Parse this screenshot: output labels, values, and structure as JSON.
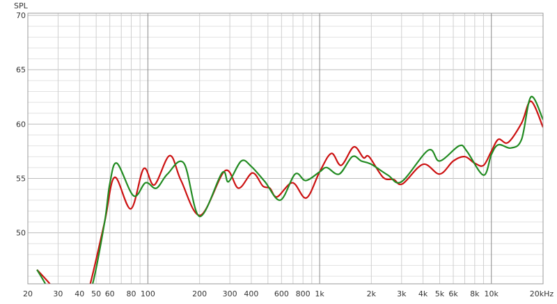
{
  "chart_data": {
    "type": "line",
    "ylabel": "SPL",
    "x_scale": "log",
    "xlim": [
      20,
      20000
    ],
    "ylim": [
      45.3,
      70.2
    ],
    "grid": true,
    "x_ticks": [
      {
        "v": 20,
        "label": "20"
      },
      {
        "v": 30,
        "label": "30"
      },
      {
        "v": 40,
        "label": "40"
      },
      {
        "v": 50,
        "label": "50"
      },
      {
        "v": 60,
        "label": "60"
      },
      {
        "v": 80,
        "label": "80"
      },
      {
        "v": 100,
        "label": "100"
      },
      {
        "v": 200,
        "label": "200"
      },
      {
        "v": 300,
        "label": "300"
      },
      {
        "v": 400,
        "label": "400"
      },
      {
        "v": 600,
        "label": "600"
      },
      {
        "v": 800,
        "label": "800"
      },
      {
        "v": 1000,
        "label": "1k"
      },
      {
        "v": 2000,
        "label": "2k"
      },
      {
        "v": 3000,
        "label": "3k"
      },
      {
        "v": 4000,
        "label": "4k"
      },
      {
        "v": 5000,
        "label": "5k"
      },
      {
        "v": 6000,
        "label": "6k"
      },
      {
        "v": 8000,
        "label": "8k"
      },
      {
        "v": 10000,
        "label": "10k"
      },
      {
        "v": 20000,
        "label": "20kHz"
      }
    ],
    "y_ticks": [
      {
        "v": 70,
        "label": "70"
      },
      {
        "v": 65,
        "label": "65"
      },
      {
        "v": 60,
        "label": "60"
      },
      {
        "v": 55,
        "label": "55"
      },
      {
        "v": 50,
        "label": "50"
      }
    ],
    "series": [
      {
        "color": "#cc1111",
        "x": [
          22.6,
          27.2,
          33,
          40,
          46,
          56,
          64,
          79.5,
          94.5,
          109,
          134,
          156,
          202,
          281,
          337,
          406,
          467,
          513,
          565,
          695,
          836,
          1000,
          1170,
          1335,
          1580,
          1800,
          1940,
          2340,
          2700,
          3040,
          4000,
          5000,
          6000,
          7000,
          8000,
          9000,
          10000,
          11000,
          12500,
          15000,
          17000,
          20000
        ],
        "y": [
          46.6,
          45.2,
          43.5,
          42.5,
          45.2,
          51.0,
          55.1,
          52.2,
          55.9,
          54.4,
          57.1,
          54.8,
          51.6,
          55.7,
          54.1,
          55.5,
          54.3,
          54.1,
          53.3,
          54.6,
          53.2,
          55.6,
          57.3,
          56.2,
          57.9,
          56.9,
          57.0,
          55.1,
          54.9,
          54.5,
          56.3,
          55.4,
          56.6,
          57.0,
          56.4,
          56.2,
          57.5,
          58.6,
          58.3,
          60.1,
          62.1,
          59.7
        ]
      },
      {
        "color": "#228b22",
        "x": [
          22.6,
          25.5,
          30,
          40,
          47.5,
          56,
          60,
          66,
          82.5,
          97,
          112,
          130,
          162,
          200,
          270,
          295,
          350,
          400,
          480,
          590,
          720,
          830,
          1000,
          1100,
          1300,
          1550,
          1750,
          2000,
          2500,
          3000,
          4300,
          5000,
          6500,
          7200,
          9000,
          10000,
          11000,
          13000,
          15000,
          17000,
          20000
        ],
        "y": [
          46.6,
          45.2,
          43.0,
          42.5,
          45.2,
          51.0,
          54.5,
          56.4,
          53.4,
          54.6,
          54.1,
          55.4,
          56.4,
          51.5,
          55.5,
          54.7,
          56.6,
          56.1,
          54.7,
          53.0,
          55.4,
          54.8,
          55.6,
          56.0,
          55.4,
          57.0,
          56.6,
          56.3,
          55.3,
          54.7,
          57.6,
          56.6,
          58.0,
          57.5,
          55.3,
          57.2,
          58.1,
          57.8,
          58.6,
          62.5,
          60.4
        ]
      }
    ]
  }
}
